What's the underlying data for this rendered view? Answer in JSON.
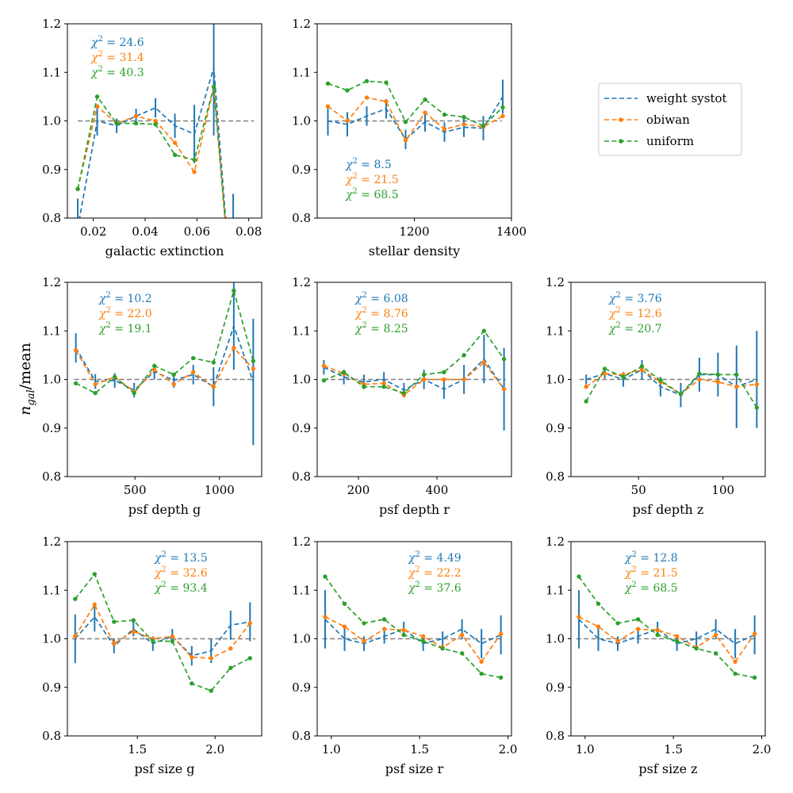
{
  "figure": {
    "ylabel": "n_gal/mean",
    "ylabel_main": "n",
    "ylabel_sub": "gal",
    "ylabel_rest": "/mean"
  },
  "legend": {
    "entries": [
      {
        "name": "weight systot",
        "color": "#1f77b4",
        "marker": false
      },
      {
        "name": "obiwan",
        "color": "#ff7f0e",
        "marker": true
      },
      {
        "name": "uniform",
        "color": "#2ca02c",
        "marker": true
      }
    ]
  },
  "chart_data": [
    {
      "type": "line",
      "xlabel": "galactic extinction",
      "xlim": [
        0.01,
        0.085
      ],
      "ylim": [
        0.8,
        1.2
      ],
      "xticks": [
        0.02,
        0.04,
        0.06,
        0.08
      ],
      "xtick_labels": [
        "0.02",
        "0.04",
        "0.06",
        "0.08"
      ],
      "yticks": [
        0.8,
        0.9,
        1.0,
        1.1,
        1.2
      ],
      "ytick_labels": [
        "0.8",
        "0.9",
        "1.0",
        "1.1",
        "1.2"
      ],
      "ref_line": [
        0.014,
        0.082
      ],
      "x": [
        0.014,
        0.0215,
        0.029,
        0.0365,
        0.044,
        0.0515,
        0.059,
        0.0665,
        0.074
      ],
      "series": [
        {
          "name": "weight systot",
          "values": [
            0.78,
            1.0,
            0.99,
            1.01,
            1.027,
            0.99,
            0.973,
            1.11,
            0.6
          ],
          "errors": [
            0.06,
            0.03,
            0.015,
            0.015,
            0.02,
            0.025,
            0.06,
            0.14,
            0.25
          ]
        },
        {
          "name": "obiwan",
          "values": [
            0.86,
            1.03,
            0.995,
            1.01,
            1.0,
            0.955,
            0.895,
            1.07,
            0.6
          ]
        },
        {
          "name": "uniform",
          "values": [
            0.86,
            1.05,
            0.995,
            0.995,
            0.993,
            0.93,
            0.92,
            1.07,
            0.6
          ]
        }
      ],
      "chi2": {
        "weight systot": "24.6",
        "obiwan": "31.4",
        "uniform": "40.3"
      }
    },
    {
      "type": "line",
      "xlabel": "stellar density",
      "xlim": [
        1000,
        1400
      ],
      "ylim": [
        0.8,
        1.2
      ],
      "xticks": [
        1200,
        1400
      ],
      "xtick_labels": [
        "1200",
        "1400"
      ],
      "yticks": [
        0.8,
        0.9,
        1.0,
        1.1,
        1.2
      ],
      "ytick_labels": [
        "0.8",
        "0.9",
        "1.0",
        "1.1",
        "1.2"
      ],
      "ref_line": [
        1020,
        1380
      ],
      "x": [
        1022,
        1062,
        1102,
        1142,
        1182,
        1222,
        1262,
        1302,
        1342,
        1382
      ],
      "series": [
        {
          "name": "weight systot",
          "values": [
            1.0,
            0.993,
            1.01,
            1.025,
            0.962,
            0.998,
            0.977,
            0.987,
            0.985,
            1.05
          ],
          "errors": [
            0.03,
            0.025,
            0.02,
            0.02,
            0.02,
            0.02,
            0.02,
            0.02,
            0.025,
            0.035
          ]
        },
        {
          "name": "obiwan",
          "values": [
            1.03,
            1.0,
            1.048,
            1.04,
            0.96,
            1.017,
            0.983,
            0.993,
            0.988,
            1.01
          ]
        },
        {
          "name": "uniform",
          "values": [
            1.077,
            1.063,
            1.082,
            1.079,
            0.998,
            1.044,
            1.013,
            1.008,
            0.99,
            1.028
          ]
        }
      ],
      "chi2": {
        "weight systot": "8.5",
        "obiwan": "21.5",
        "uniform": "68.5"
      }
    },
    {
      "type": "line",
      "xlabel": "psf depth g",
      "xlim": [
        100,
        1250
      ],
      "ylim": [
        0.8,
        1.2
      ],
      "xticks": [
        500,
        1000
      ],
      "xtick_labels": [
        "500",
        "1000"
      ],
      "yticks": [
        0.8,
        0.9,
        1.0,
        1.1,
        1.2
      ],
      "ytick_labels": [
        "0.8",
        "0.9",
        "1.0",
        "1.1",
        "1.2"
      ],
      "ref_line": [
        140,
        1210
      ],
      "x": [
        150,
        265,
        380,
        495,
        615,
        730,
        845,
        965,
        1085,
        1200
      ],
      "series": [
        {
          "name": "weight systot",
          "values": [
            1.065,
            0.996,
            0.998,
            0.978,
            1.016,
            0.998,
            1.01,
            0.985,
            1.11,
            0.995
          ],
          "errors": [
            0.03,
            0.015,
            0.015,
            0.015,
            0.015,
            0.015,
            0.02,
            0.04,
            0.09,
            0.13
          ]
        },
        {
          "name": "obiwan",
          "values": [
            1.06,
            0.99,
            1.005,
            0.975,
            1.02,
            0.99,
            1.015,
            0.985,
            1.065,
            1.022
          ]
        },
        {
          "name": "uniform",
          "values": [
            0.992,
            0.972,
            1.005,
            0.972,
            1.028,
            1.01,
            1.044,
            1.035,
            1.183,
            1.038
          ]
        }
      ],
      "chi2": {
        "weight systot": "10.2",
        "obiwan": "22.0",
        "uniform": "19.1"
      }
    },
    {
      "type": "line",
      "xlabel": "psf depth r",
      "xlim": [
        95,
        590
      ],
      "ylim": [
        0.8,
        1.2
      ],
      "xticks": [
        200,
        400
      ],
      "xtick_labels": [
        "200",
        "400"
      ],
      "yticks": [
        0.8,
        0.9,
        1.0,
        1.1,
        1.2
      ],
      "ytick_labels": [
        "0.8",
        "0.9",
        "1.0",
        "1.1",
        "1.2"
      ],
      "ref_line": [
        110,
        575
      ],
      "x": [
        112,
        163,
        214,
        265,
        316,
        367,
        418,
        469,
        520,
        571
      ],
      "series": [
        {
          "name": "weight systot",
          "values": [
            1.025,
            1.005,
            0.995,
            1.0,
            0.978,
            1.0,
            0.98,
            1.0,
            1.042,
            0.98
          ],
          "errors": [
            0.015,
            0.015,
            0.015,
            0.015,
            0.015,
            0.02,
            0.02,
            0.03,
            0.05,
            0.085
          ]
        },
        {
          "name": "obiwan",
          "values": [
            1.028,
            1.012,
            0.99,
            0.992,
            0.968,
            1.0,
            1.0,
            1.0,
            1.035,
            0.98
          ]
        },
        {
          "name": "uniform",
          "values": [
            0.998,
            1.015,
            0.985,
            0.985,
            0.972,
            1.01,
            1.015,
            1.05,
            1.1,
            1.042
          ]
        }
      ],
      "chi2": {
        "weight systot": "6.08",
        "obiwan": "8.76",
        "uniform": "8.25"
      }
    },
    {
      "type": "line",
      "xlabel": "psf depth z",
      "xlim": [
        10,
        125
      ],
      "ylim": [
        0.8,
        1.2
      ],
      "xticks": [
        50,
        100
      ],
      "xtick_labels": [
        "50",
        "100"
      ],
      "yticks": [
        0.8,
        0.9,
        1.0,
        1.1,
        1.2
      ],
      "ytick_labels": [
        "0.8",
        "0.9",
        "1.0",
        "1.1",
        "1.2"
      ],
      "ref_line": [
        15,
        120
      ],
      "x": [
        19,
        30,
        41,
        52,
        63,
        75,
        86,
        97,
        108,
        120
      ],
      "series": [
        {
          "name": "weight systot",
          "values": [
            1.0,
            1.012,
            1.0,
            1.02,
            0.985,
            0.968,
            1.01,
            1.01,
            0.985,
            1.0
          ],
          "errors": [
            0.01,
            0.01,
            0.015,
            0.02,
            0.02,
            0.025,
            0.035,
            0.045,
            0.085,
            0.1
          ]
        },
        {
          "name": "obiwan",
          "values": [
            0.985,
            1.012,
            1.01,
            1.02,
            0.995,
            0.97,
            1.0,
            0.995,
            0.985,
            0.99
          ]
        },
        {
          "name": "uniform",
          "values": [
            0.955,
            1.022,
            1.005,
            1.027,
            0.998,
            0.97,
            1.012,
            1.01,
            1.01,
            0.942
          ]
        }
      ],
      "chi2": {
        "weight systot": "3.76",
        "obiwan": "12.6",
        "uniform": "20.7"
      }
    },
    {
      "type": "line",
      "xlabel": "psf size g",
      "xlim": [
        1.05,
        2.3
      ],
      "ylim": [
        0.8,
        1.2
      ],
      "xticks": [
        1.5,
        2.0
      ],
      "xtick_labels": [
        "1.5",
        "2.0"
      ],
      "yticks": [
        0.8,
        0.9,
        1.0,
        1.1,
        1.2
      ],
      "ytick_labels": [
        "0.8",
        "0.9",
        "1.0",
        "1.1",
        "1.2"
      ],
      "ref_line": [
        1.08,
        2.26
      ],
      "x": [
        1.1,
        1.225,
        1.35,
        1.475,
        1.6,
        1.725,
        1.85,
        1.975,
        2.1,
        2.225
      ],
      "series": [
        {
          "name": "weight systot",
          "values": [
            1.0,
            1.045,
            0.985,
            1.02,
            0.99,
            1.005,
            0.965,
            0.975,
            1.028,
            1.035
          ],
          "errors": [
            0.05,
            0.03,
            0.015,
            0.015,
            0.015,
            0.015,
            0.02,
            0.025,
            0.03,
            0.04
          ]
        },
        {
          "name": "obiwan",
          "values": [
            1.005,
            1.07,
            0.99,
            1.015,
            1.0,
            1.005,
            0.962,
            0.96,
            0.98,
            1.032
          ]
        },
        {
          "name": "uniform",
          "values": [
            1.082,
            1.133,
            1.035,
            1.038,
            0.995,
            0.995,
            0.908,
            0.893,
            0.94,
            0.96
          ]
        }
      ],
      "chi2": {
        "weight systot": "13.5",
        "obiwan": "32.6",
        "uniform": "93.4"
      }
    },
    {
      "type": "line",
      "xlabel": "psf size r",
      "xlim": [
        0.92,
        2.02
      ],
      "ylim": [
        0.8,
        1.2
      ],
      "xticks": [
        1.0,
        1.5,
        2.0
      ],
      "xtick_labels": [
        "1.0",
        "1.5",
        "2.0"
      ],
      "yticks": [
        0.8,
        0.9,
        1.0,
        1.1,
        1.2
      ],
      "ytick_labels": [
        "0.8",
        "0.9",
        "1.0",
        "1.1",
        "1.2"
      ],
      "ref_line": [
        0.95,
        1.97
      ],
      "x": [
        0.965,
        1.075,
        1.185,
        1.3,
        1.41,
        1.52,
        1.63,
        1.74,
        1.85,
        1.96
      ],
      "series": [
        {
          "name": "weight systot",
          "values": [
            1.04,
            1.0,
            0.99,
            1.005,
            1.02,
            0.99,
            1.0,
            1.02,
            0.99,
            1.008
          ],
          "errors": [
            0.06,
            0.025,
            0.015,
            0.015,
            0.015,
            0.015,
            0.015,
            0.02,
            0.03,
            0.04
          ]
        },
        {
          "name": "obiwan",
          "values": [
            1.045,
            1.025,
            0.995,
            1.02,
            1.018,
            1.005,
            0.982,
            1.008,
            0.953,
            1.01
          ]
        },
        {
          "name": "uniform",
          "values": [
            1.128,
            1.072,
            1.032,
            1.04,
            1.008,
            0.995,
            0.98,
            0.97,
            0.928,
            0.92
          ]
        }
      ],
      "chi2": {
        "weight systot": "4.49",
        "obiwan": "22.2",
        "uniform": "37.6"
      }
    },
    {
      "type": "line",
      "xlabel": "psf size z",
      "xlim": [
        0.92,
        2.02
      ],
      "ylim": [
        0.8,
        1.2
      ],
      "xticks": [
        1.0,
        1.5,
        2.0
      ],
      "xtick_labels": [
        "1.0",
        "1.5",
        "2.0"
      ],
      "yticks": [
        0.8,
        0.9,
        1.0,
        1.1,
        1.2
      ],
      "ytick_labels": [
        "0.8",
        "0.9",
        "1.0",
        "1.1",
        "1.2"
      ],
      "ref_line": [
        0.95,
        1.97
      ],
      "x": [
        0.965,
        1.075,
        1.185,
        1.3,
        1.41,
        1.52,
        1.63,
        1.74,
        1.85,
        1.96
      ],
      "series": [
        {
          "name": "weight systot",
          "values": [
            1.04,
            1.0,
            0.99,
            1.005,
            1.02,
            0.99,
            1.0,
            1.02,
            0.99,
            1.008
          ],
          "errors": [
            0.06,
            0.025,
            0.015,
            0.015,
            0.015,
            0.015,
            0.015,
            0.02,
            0.03,
            0.04
          ]
        },
        {
          "name": "obiwan",
          "values": [
            1.045,
            1.025,
            0.995,
            1.02,
            1.018,
            1.005,
            0.982,
            1.008,
            0.953,
            1.01
          ]
        },
        {
          "name": "uniform",
          "values": [
            1.128,
            1.072,
            1.032,
            1.04,
            1.008,
            0.995,
            0.98,
            0.97,
            0.928,
            0.92
          ]
        }
      ],
      "chi2": {
        "weight systot": "12.8",
        "obiwan": "21.5",
        "uniform": "68.5"
      }
    }
  ]
}
